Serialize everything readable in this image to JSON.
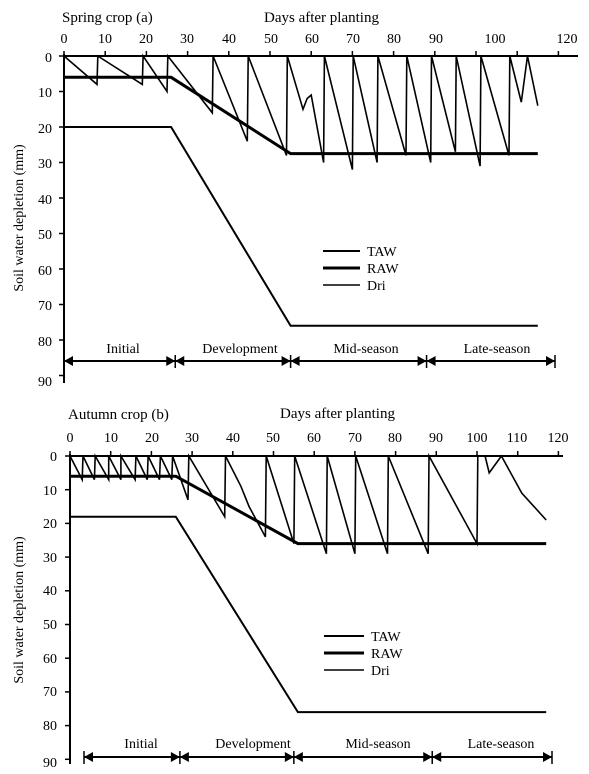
{
  "charts": [
    {
      "title": "Spring crop (a)",
      "x_title": "Days after planting",
      "y_title": "Soil water depletion (mm)",
      "x_ticks": [
        "0",
        "10",
        "20",
        "30",
        "40",
        "50",
        "60",
        "70",
        "80",
        "90",
        "100",
        "120"
      ],
      "y_ticks": [
        "0",
        "10",
        "20",
        "30",
        "40",
        "50",
        "60",
        "70",
        "80",
        "90"
      ],
      "legend": [
        "TAW",
        "RAW",
        "Dri"
      ],
      "stages": [
        "Initial",
        "Development",
        "Mid-season",
        "Late-season"
      ]
    },
    {
      "title": "Autumn crop (b)",
      "x_title": "Days after planting",
      "y_title": "Soil water depletion (mm)",
      "x_ticks": [
        "0",
        "10",
        "20",
        "30",
        "40",
        "50",
        "60",
        "70",
        "80",
        "90",
        "100",
        "110",
        "120"
      ],
      "y_ticks": [
        "0",
        "10",
        "20",
        "30",
        "40",
        "50",
        "60",
        "70",
        "80",
        "90"
      ],
      "legend": [
        "TAW",
        "RAW",
        "Dri"
      ],
      "stages": [
        "Initial",
        "Development",
        "Mid-season",
        "Late-season"
      ]
    }
  ],
  "chart_data": [
    {
      "type": "line",
      "title": "Spring crop (a)",
      "xlabel": "Days after planting",
      "ylabel": "Soil water depletion (mm)",
      "xlim": [
        0,
        120
      ],
      "ylim": [
        0,
        90
      ],
      "y_inverted": true,
      "x_axis_position": "top",
      "legend_position": "center-right",
      "grid": false,
      "stages": [
        {
          "name": "Initial",
          "start": 0,
          "end": 27
        },
        {
          "name": "Development",
          "start": 27,
          "end": 55
        },
        {
          "name": "Mid-season",
          "start": 55,
          "end": 88
        },
        {
          "name": "Late-season",
          "start": 88,
          "end": 115
        }
      ],
      "series": [
        {
          "name": "TAW",
          "x": [
            0,
            26,
            55,
            115
          ],
          "y": [
            20,
            20,
            76,
            76
          ]
        },
        {
          "name": "RAW",
          "x": [
            0,
            26,
            55,
            115
          ],
          "y": [
            6,
            6,
            27.5,
            27.5
          ]
        },
        {
          "name": "Dri",
          "x": [
            0,
            8,
            8.2,
            19,
            19.2,
            25,
            25.2,
            36,
            36.2,
            44.5,
            44.7,
            54,
            54.2,
            58,
            59,
            60,
            63,
            63.2,
            70,
            70.2,
            76,
            76.2,
            83,
            83.2,
            89,
            89.2,
            95,
            95.2,
            101,
            101.2,
            108,
            108.2,
            111,
            112.5,
            115
          ],
          "y": [
            0,
            8,
            0,
            8,
            0,
            10,
            0,
            16,
            0,
            24,
            0,
            28,
            0,
            15,
            12,
            11,
            30,
            0,
            32,
            0,
            30,
            0,
            28,
            0,
            30,
            0,
            27,
            0,
            31,
            0,
            28,
            0,
            13,
            0,
            14
          ]
        }
      ]
    },
    {
      "type": "line",
      "title": "Autumn crop (b)",
      "xlabel": "Days after planting",
      "ylabel": "Soil water depletion (mm)",
      "xlim": [
        0,
        120
      ],
      "ylim": [
        0,
        90
      ],
      "y_inverted": true,
      "x_axis_position": "top",
      "legend_position": "center-right",
      "grid": false,
      "stages": [
        {
          "name": "Initial",
          "start": 0,
          "end": 27
        },
        {
          "name": "Development",
          "start": 27,
          "end": 55
        },
        {
          "name": "Mid-season",
          "start": 55,
          "end": 89
        },
        {
          "name": "Late-season",
          "start": 89,
          "end": 117
        }
      ],
      "series": [
        {
          "name": "TAW",
          "x": [
            0,
            26,
            56,
            117
          ],
          "y": [
            18,
            18,
            76,
            76
          ]
        },
        {
          "name": "RAW",
          "x": [
            0,
            26,
            56,
            117
          ],
          "y": [
            6,
            6,
            26,
            26
          ]
        },
        {
          "name": "Dri",
          "x": [
            0,
            3,
            3.2,
            6,
            6.2,
            9.5,
            9.5,
            12.5,
            12.5,
            16,
            16.2,
            19,
            19.2,
            22,
            22.2,
            25,
            25.2,
            29,
            29.2,
            38,
            38.2,
            42,
            44,
            48,
            48.2,
            55,
            55.2,
            63,
            63.2,
            70,
            70.2,
            78,
            78.2,
            88,
            88.2,
            100,
            100.2,
            102,
            103,
            106,
            111,
            117
          ],
          "y": [
            0,
            7,
            0,
            7,
            0,
            7,
            0,
            7,
            0,
            7,
            0,
            7,
            0,
            7,
            0,
            7,
            0,
            13,
            0,
            18,
            0,
            9,
            15,
            24,
            0,
            26,
            0,
            29,
            0,
            29,
            0,
            29,
            0,
            29,
            0,
            26,
            0,
            0,
            5,
            0,
            11,
            19
          ]
        }
      ]
    }
  ]
}
